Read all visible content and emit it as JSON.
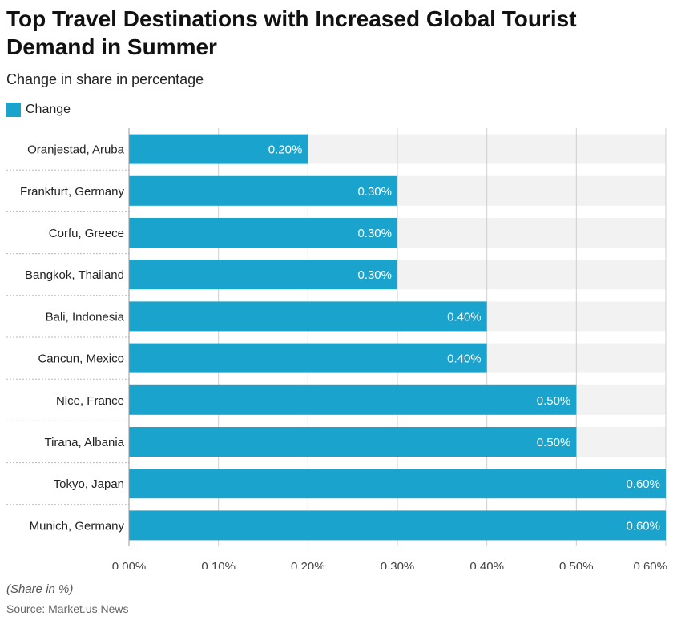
{
  "title": "Top Travel Destinations with Increased Global Tourist Demand in Summer",
  "subtitle": "Change in share in percentage",
  "footnote": "(Share in %)",
  "source": "Source: Market.us News",
  "colors": {
    "bar": "#1aa3cc",
    "band": "#f2f2f2",
    "grid": "#cfcfcf"
  },
  "chart_data": {
    "type": "bar",
    "orientation": "horizontal",
    "title": "Top Travel Destinations with Increased Global Tourist Demand in Summer",
    "subtitle": "Change in share in percentage",
    "categories": [
      "Oranjestad, Aruba",
      "Frankfurt, Germany",
      "Corfu, Greece",
      "Bangkok, Thailand",
      "Bali, Indonesia",
      "Cancun, Mexico",
      "Nice, France",
      "Tirana, Albania",
      "Tokyo, Japan",
      "Munich, Germany"
    ],
    "series": [
      {
        "name": "Change",
        "values": [
          0.2,
          0.3,
          0.3,
          0.3,
          0.4,
          0.4,
          0.5,
          0.5,
          0.6,
          0.6
        ]
      }
    ],
    "value_labels": [
      "0.20%",
      "0.30%",
      "0.30%",
      "0.30%",
      "0.40%",
      "0.40%",
      "0.50%",
      "0.50%",
      "0.60%",
      "0.60%"
    ],
    "xticks": [
      0,
      0.1,
      0.2,
      0.3,
      0.4,
      0.5,
      0.6
    ],
    "xtick_labels": [
      "0.00%",
      "0.10%",
      "0.20%",
      "0.30%",
      "0.40%",
      "0.50%",
      "0.60%"
    ],
    "xlim": [
      0,
      0.6
    ],
    "xlabel": "",
    "ylabel": "",
    "legend": "top-left",
    "grid": true
  }
}
